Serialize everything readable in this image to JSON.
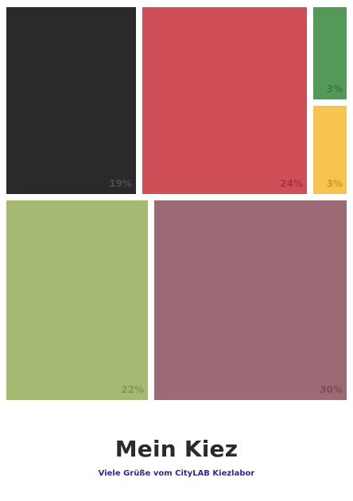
{
  "chart_data": {
    "type": "treemap",
    "values": [
      19,
      24,
      3,
      3,
      22,
      30
    ],
    "labels": [
      "19%",
      "24%",
      "3%",
      "3%",
      "22%",
      "30%"
    ],
    "colors": [
      "#2a2a2a",
      "#cf4e57",
      "#559959",
      "#f7c54f",
      "#a6b973",
      "#9c6a75"
    ],
    "label_colors": [
      "#6a6a6a",
      "#8a1e28",
      "#245e2a",
      "#a8780f",
      "#667a3a",
      "#5e3440"
    ]
  },
  "footer": {
    "title": "Mein Kiez",
    "subtitle": "Viele Grüße vom CityLAB Kiezlabor"
  }
}
